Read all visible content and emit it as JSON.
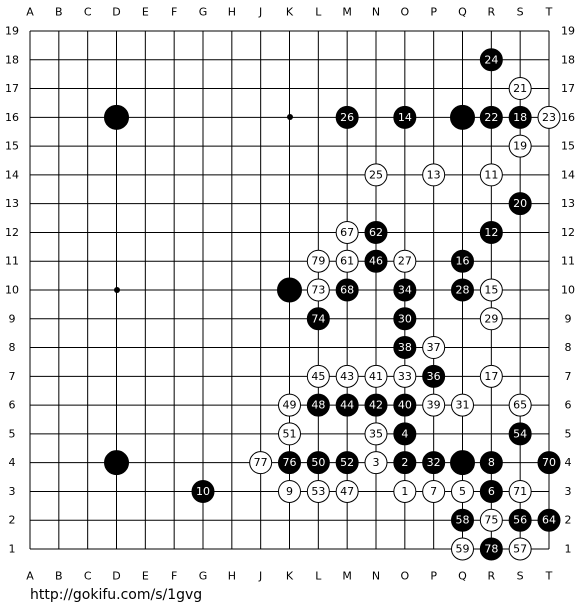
{
  "board": {
    "columns": [
      "A",
      "B",
      "C",
      "D",
      "E",
      "F",
      "G",
      "H",
      "J",
      "K",
      "L",
      "M",
      "N",
      "O",
      "P",
      "Q",
      "R",
      "S",
      "T"
    ],
    "rows": [
      19,
      18,
      17,
      16,
      15,
      14,
      13,
      12,
      11,
      10,
      9,
      8,
      7,
      6,
      5,
      4,
      3,
      2,
      1
    ],
    "stones": [
      {
        "col": "D",
        "row": 16,
        "color": "black"
      },
      {
        "col": "Q",
        "row": 16,
        "color": "black"
      },
      {
        "col": "K",
        "row": 10,
        "color": "black"
      },
      {
        "col": "D",
        "row": 4,
        "color": "black"
      },
      {
        "col": "Q",
        "row": 4,
        "color": "black"
      },
      {
        "col": "R",
        "row": 18,
        "color": "black",
        "move": 24
      },
      {
        "col": "M",
        "row": 16,
        "color": "black",
        "move": 26
      },
      {
        "col": "O",
        "row": 16,
        "color": "black",
        "move": 14
      },
      {
        "col": "R",
        "row": 16,
        "color": "black",
        "move": 22
      },
      {
        "col": "S",
        "row": 16,
        "color": "black",
        "move": 18
      },
      {
        "col": "S",
        "row": 13,
        "color": "black",
        "move": 20
      },
      {
        "col": "N",
        "row": 12,
        "color": "black",
        "move": 62
      },
      {
        "col": "R",
        "row": 12,
        "color": "black",
        "move": 12
      },
      {
        "col": "N",
        "row": 11,
        "color": "black",
        "move": 46
      },
      {
        "col": "Q",
        "row": 11,
        "color": "black",
        "move": 16
      },
      {
        "col": "M",
        "row": 10,
        "color": "black",
        "move": 68
      },
      {
        "col": "O",
        "row": 10,
        "color": "black",
        "move": 34
      },
      {
        "col": "Q",
        "row": 10,
        "color": "black",
        "move": 28
      },
      {
        "col": "L",
        "row": 9,
        "color": "black",
        "move": 74
      },
      {
        "col": "O",
        "row": 9,
        "color": "black",
        "move": 30
      },
      {
        "col": "O",
        "row": 8,
        "color": "black",
        "move": 38
      },
      {
        "col": "P",
        "row": 7,
        "color": "black",
        "move": 36
      },
      {
        "col": "L",
        "row": 6,
        "color": "black",
        "move": 48
      },
      {
        "col": "M",
        "row": 6,
        "color": "black",
        "move": 44
      },
      {
        "col": "N",
        "row": 6,
        "color": "black",
        "move": 42
      },
      {
        "col": "O",
        "row": 6,
        "color": "black",
        "move": 40
      },
      {
        "col": "O",
        "row": 5,
        "color": "black",
        "move": 4
      },
      {
        "col": "S",
        "row": 5,
        "color": "black",
        "move": 54
      },
      {
        "col": "K",
        "row": 4,
        "color": "black",
        "move": 76
      },
      {
        "col": "L",
        "row": 4,
        "color": "black",
        "move": 50
      },
      {
        "col": "M",
        "row": 4,
        "color": "black",
        "move": 52
      },
      {
        "col": "O",
        "row": 4,
        "color": "black",
        "move": 2
      },
      {
        "col": "P",
        "row": 4,
        "color": "black",
        "move": 32
      },
      {
        "col": "R",
        "row": 4,
        "color": "black",
        "move": 8
      },
      {
        "col": "T",
        "row": 4,
        "color": "black",
        "move": 70
      },
      {
        "col": "G",
        "row": 3,
        "color": "black",
        "move": 10
      },
      {
        "col": "R",
        "row": 3,
        "color": "black",
        "move": 6
      },
      {
        "col": "Q",
        "row": 2,
        "color": "black",
        "move": 58
      },
      {
        "col": "S",
        "row": 2,
        "color": "black",
        "move": 56
      },
      {
        "col": "T",
        "row": 2,
        "color": "black",
        "move": 64
      },
      {
        "col": "R",
        "row": 1,
        "color": "black",
        "move": 78
      },
      {
        "col": "S",
        "row": 17,
        "color": "white",
        "move": 21
      },
      {
        "col": "T",
        "row": 16,
        "color": "white",
        "move": 23
      },
      {
        "col": "S",
        "row": 15,
        "color": "white",
        "move": 19
      },
      {
        "col": "N",
        "row": 14,
        "color": "white",
        "move": 25
      },
      {
        "col": "P",
        "row": 14,
        "color": "white",
        "move": 13
      },
      {
        "col": "R",
        "row": 14,
        "color": "white",
        "move": 11
      },
      {
        "col": "M",
        "row": 12,
        "color": "white",
        "move": 67
      },
      {
        "col": "L",
        "row": 11,
        "color": "white",
        "move": 79
      },
      {
        "col": "M",
        "row": 11,
        "color": "white",
        "move": 61
      },
      {
        "col": "O",
        "row": 11,
        "color": "white",
        "move": 27
      },
      {
        "col": "L",
        "row": 10,
        "color": "white",
        "move": 73
      },
      {
        "col": "R",
        "row": 10,
        "color": "white",
        "move": 15
      },
      {
        "col": "R",
        "row": 9,
        "color": "white",
        "move": 29
      },
      {
        "col": "P",
        "row": 8,
        "color": "white",
        "move": 37
      },
      {
        "col": "L",
        "row": 7,
        "color": "white",
        "move": 45
      },
      {
        "col": "M",
        "row": 7,
        "color": "white",
        "move": 43
      },
      {
        "col": "N",
        "row": 7,
        "color": "white",
        "move": 41
      },
      {
        "col": "O",
        "row": 7,
        "color": "white",
        "move": 33
      },
      {
        "col": "R",
        "row": 7,
        "color": "white",
        "move": 17
      },
      {
        "col": "K",
        "row": 6,
        "color": "white",
        "move": 49
      },
      {
        "col": "P",
        "row": 6,
        "color": "white",
        "move": 39
      },
      {
        "col": "Q",
        "row": 6,
        "color": "white",
        "move": 31
      },
      {
        "col": "S",
        "row": 6,
        "color": "white",
        "move": 65
      },
      {
        "col": "K",
        "row": 5,
        "color": "white",
        "move": 51
      },
      {
        "col": "N",
        "row": 5,
        "color": "white",
        "move": 35
      },
      {
        "col": "J",
        "row": 4,
        "color": "white",
        "move": 77
      },
      {
        "col": "N",
        "row": 4,
        "color": "white",
        "move": 3
      },
      {
        "col": "K",
        "row": 3,
        "color": "white",
        "move": 9
      },
      {
        "col": "L",
        "row": 3,
        "color": "white",
        "move": 53
      },
      {
        "col": "M",
        "row": 3,
        "color": "white",
        "move": 47
      },
      {
        "col": "O",
        "row": 3,
        "color": "white",
        "move": 1
      },
      {
        "col": "P",
        "row": 3,
        "color": "white",
        "move": 7
      },
      {
        "col": "Q",
        "row": 3,
        "color": "white",
        "move": 5
      },
      {
        "col": "S",
        "row": 3,
        "color": "white",
        "move": 71
      },
      {
        "col": "R",
        "row": 2,
        "color": "white",
        "move": 75
      },
      {
        "col": "Q",
        "row": 1,
        "color": "white",
        "move": 59
      },
      {
        "col": "S",
        "row": 1,
        "color": "white",
        "move": 57
      }
    ]
  },
  "footer": {
    "url": "http://gokifu.com/s/1gvg"
  }
}
